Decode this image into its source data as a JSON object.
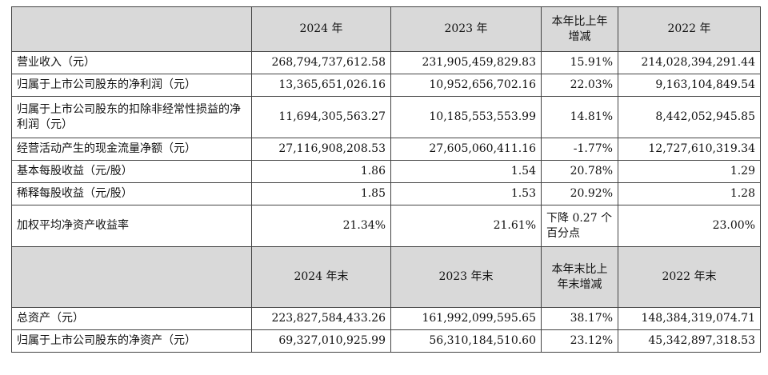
{
  "header1": {
    "col1": "2024 年",
    "col2": "2023 年",
    "col3": "本年比上年增减",
    "col4": "2022 年"
  },
  "rows1": [
    {
      "label": "营业收入（元）",
      "v1": "268,794,737,612.58",
      "v2": "231,905,459,829.83",
      "v3": "15.91%",
      "v4": "214,028,394,291.44"
    },
    {
      "label": "归属于上市公司股东的净利润（元）",
      "v1": "13,365,651,026.16",
      "v2": "10,952,656,702.16",
      "v3": "22.03%",
      "v4": "9,163,104,849.54"
    },
    {
      "label": "归属于上市公司股东的扣除非经常性损益的净利润（元）",
      "v1": "11,694,305,563.27",
      "v2": "10,185,553,553.99",
      "v3": "14.81%",
      "v4": "8,442,052,945.85"
    },
    {
      "label": "经营活动产生的现金流量净额（元）",
      "v1": "27,116,908,208.53",
      "v2": "27,605,060,411.16",
      "v3": "-1.77%",
      "v4": "12,727,610,319.34"
    },
    {
      "label": "基本每股收益（元/股）",
      "v1": "1.86",
      "v2": "1.54",
      "v3": "20.78%",
      "v4": "1.29"
    },
    {
      "label": "稀释每股收益（元/股）",
      "v1": "1.85",
      "v2": "1.53",
      "v3": "20.92%",
      "v4": "1.28"
    },
    {
      "label": "加权平均净资产收益率",
      "v1": "21.34%",
      "v2": "21.61%",
      "v3": "下降 0.27 个百分点",
      "v4": "23.00%"
    }
  ],
  "header2": {
    "col1": "2024 年末",
    "col2": "2023 年末",
    "col3": "本年末比上年末增减",
    "col4": "2022 年末"
  },
  "rows2": [
    {
      "label": "总资产（元）",
      "v1": "223,827,584,433.26",
      "v2": "161,992,099,595.65",
      "v3": "38.17%",
      "v4": "148,384,319,074.71"
    },
    {
      "label": "归属于上市公司股东的净资产（元）",
      "v1": "69,327,010,925.99",
      "v2": "56,310,184,510.60",
      "v3": "23.12%",
      "v4": "45,342,897,318.53"
    }
  ]
}
